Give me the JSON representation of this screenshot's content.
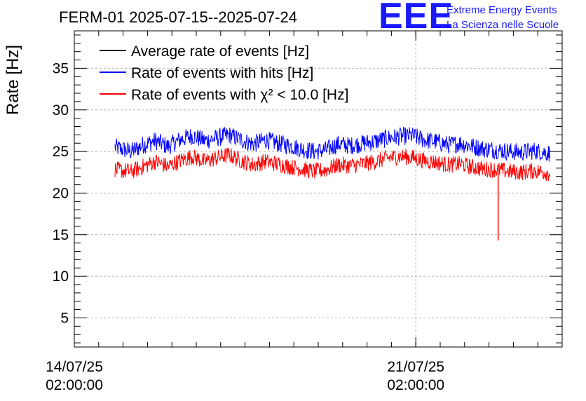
{
  "chart_data": {
    "type": "line",
    "title": "FERM-01 2025-07-15--2025-07-24",
    "ylabel": "Rate [Hz]",
    "xlabel": "",
    "ylim": [
      1.5,
      39.5
    ],
    "yticks": [
      5,
      10,
      15,
      20,
      25,
      30,
      35
    ],
    "xlim": [
      "2025-07-14T02:00:00",
      "2025-07-24T02:00:00"
    ],
    "xticks": [
      {
        "value": "2025-07-14T02:00:00",
        "label_date": "14/07/25",
        "label_time": "02:00:00"
      },
      {
        "value": "2025-07-21T02:00:00",
        "label_date": "21/07/25",
        "label_time": "02:00:00"
      }
    ],
    "grid": true,
    "legend_position": "top-left",
    "series": [
      {
        "name": "Average rate of events [Hz]",
        "color": "#000000",
        "x": [],
        "y": []
      },
      {
        "name": "Rate of events with hits [Hz]",
        "color": "#0000ff",
        "x": [
          "2025-07-14T22:00:00",
          "2025-07-15T06:00:00",
          "2025-07-15T12:00:00",
          "2025-07-15T18:00:00",
          "2025-07-16T00:00:00",
          "2025-07-16T06:00:00",
          "2025-07-16T12:00:00",
          "2025-07-16T18:00:00",
          "2025-07-17T00:00:00",
          "2025-07-17T06:00:00",
          "2025-07-17T12:00:00",
          "2025-07-17T18:00:00",
          "2025-07-18T00:00:00",
          "2025-07-18T06:00:00",
          "2025-07-18T12:00:00",
          "2025-07-18T18:00:00",
          "2025-07-19T00:00:00",
          "2025-07-19T06:00:00",
          "2025-07-19T12:00:00",
          "2025-07-19T18:00:00",
          "2025-07-20T00:00:00",
          "2025-07-20T06:00:00",
          "2025-07-20T12:00:00",
          "2025-07-20T18:00:00",
          "2025-07-21T00:00:00",
          "2025-07-21T06:00:00",
          "2025-07-21T12:00:00",
          "2025-07-21T18:00:00",
          "2025-07-22T00:00:00",
          "2025-07-22T06:00:00",
          "2025-07-22T12:00:00",
          "2025-07-22T18:00:00",
          "2025-07-23T00:00:00",
          "2025-07-23T06:00:00",
          "2025-07-23T12:00:00",
          "2025-07-23T20:00:00"
        ],
        "y": [
          25.5,
          25.0,
          25.8,
          26.3,
          25.6,
          26.4,
          26.9,
          26.3,
          26.6,
          27.0,
          26.4,
          25.9,
          26.4,
          26.0,
          25.7,
          25.3,
          25.0,
          25.2,
          25.9,
          25.7,
          26.0,
          26.2,
          26.6,
          26.8,
          26.9,
          26.4,
          26.2,
          25.8,
          26.0,
          25.6,
          25.3,
          25.2,
          25.0,
          24.9,
          25.1,
          24.8
        ]
      },
      {
        "name": "Rate of events with χ² < 10.0 [Hz]",
        "color": "#ff0000",
        "x": [
          "2025-07-14T22:00:00",
          "2025-07-15T06:00:00",
          "2025-07-15T12:00:00",
          "2025-07-15T18:00:00",
          "2025-07-16T00:00:00",
          "2025-07-16T06:00:00",
          "2025-07-16T12:00:00",
          "2025-07-16T18:00:00",
          "2025-07-17T00:00:00",
          "2025-07-17T06:00:00",
          "2025-07-17T12:00:00",
          "2025-07-17T18:00:00",
          "2025-07-18T00:00:00",
          "2025-07-18T06:00:00",
          "2025-07-18T12:00:00",
          "2025-07-18T18:00:00",
          "2025-07-19T00:00:00",
          "2025-07-19T06:00:00",
          "2025-07-19T12:00:00",
          "2025-07-19T18:00:00",
          "2025-07-20T00:00:00",
          "2025-07-20T06:00:00",
          "2025-07-20T12:00:00",
          "2025-07-20T18:00:00",
          "2025-07-21T00:00:00",
          "2025-07-21T06:00:00",
          "2025-07-21T12:00:00",
          "2025-07-21T18:00:00",
          "2025-07-22T00:00:00",
          "2025-07-22T06:00:00",
          "2025-07-22T12:00:00",
          "2025-07-22T18:00:00",
          "2025-07-23T00:00:00",
          "2025-07-23T06:00:00",
          "2025-07-23T12:00:00",
          "2025-07-23T20:00:00"
        ],
        "y": [
          22.8,
          22.6,
          23.2,
          23.8,
          23.2,
          23.9,
          24.4,
          23.8,
          24.2,
          24.6,
          23.9,
          23.4,
          23.8,
          23.5,
          23.2,
          22.9,
          22.6,
          22.8,
          23.4,
          23.3,
          23.5,
          23.8,
          24.2,
          24.4,
          24.3,
          23.9,
          23.7,
          23.4,
          23.5,
          23.1,
          22.9,
          22.8,
          22.6,
          22.5,
          22.7,
          22.4
        ]
      }
    ],
    "annotations": [
      {
        "series": "Rate of events with χ² < 10.0 [Hz]",
        "type": "dip",
        "x": "2025-07-22T18:30:00",
        "y": 14.3
      }
    ]
  },
  "logo": {
    "mark": "EEE",
    "line1": "Extreme Energy Events",
    "line2": "La Scienza nelle Scuole"
  }
}
